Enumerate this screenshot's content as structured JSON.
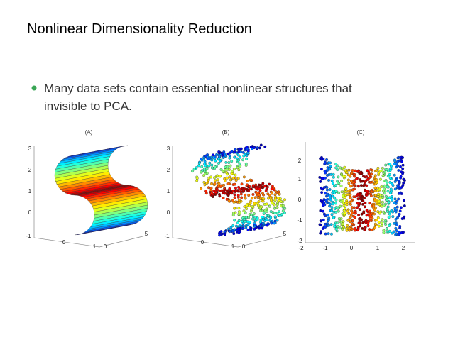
{
  "title": "Nonlinear Dimensionality Reduction",
  "bullets": [
    {
      "lines": [
        "Many data sets contain essential nonlinear structures that",
        "invisible to PCA."
      ]
    }
  ],
  "figure": {
    "panels": [
      {
        "label": "(A)",
        "ticks": [
          "3",
          "2",
          "1",
          "0",
          "-1",
          "0",
          "1",
          "0",
          "5"
        ]
      },
      {
        "label": "(B)",
        "ticks": [
          "3",
          "2",
          "1",
          "0",
          "-1",
          "0",
          "1",
          "0",
          "5"
        ]
      },
      {
        "label": "(C)",
        "ticks": [
          "2",
          "1",
          "0",
          "-1",
          "-2",
          "-2",
          "-1",
          "0",
          "1",
          "2"
        ]
      }
    ]
  }
}
